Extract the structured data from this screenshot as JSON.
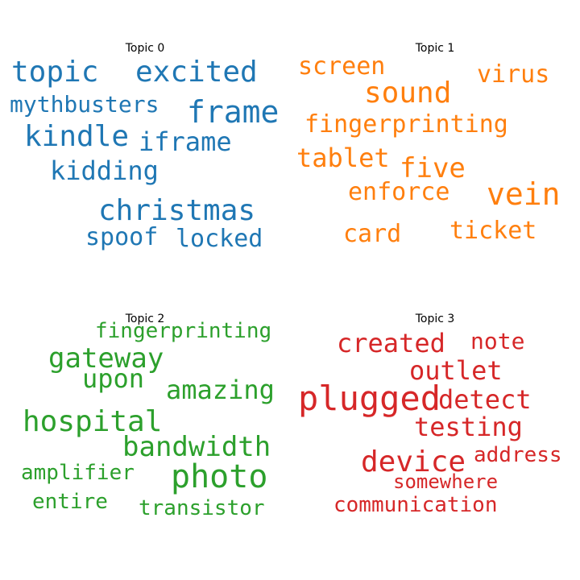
{
  "chart_data": {
    "type": "wordcloud",
    "topics": [
      {
        "title": "Topic 0",
        "color": "#1f77b4",
        "words": [
          "topic",
          "excited",
          "mythbusters",
          "frame",
          "kindle",
          "iframe",
          "kidding",
          "christmas",
          "spoof",
          "locked"
        ]
      },
      {
        "title": "Topic 1",
        "color": "#ff7f0e",
        "words": [
          "screen",
          "virus",
          "sound",
          "fingerprinting",
          "tablet",
          "five",
          "vein",
          "enforce",
          "card",
          "ticket"
        ]
      },
      {
        "title": "Topic 2",
        "color": "#2ca02c",
        "words": [
          "fingerprinting",
          "gateway",
          "upon",
          "amazing",
          "hospital",
          "bandwidth",
          "amplifier",
          "photo",
          "entire",
          "transistor"
        ]
      },
      {
        "title": "Topic 3",
        "color": "#d62728",
        "words": [
          "created",
          "note",
          "outlet",
          "plugged",
          "detect",
          "testing",
          "device",
          "address",
          "somewhere",
          "communication"
        ]
      }
    ]
  }
}
